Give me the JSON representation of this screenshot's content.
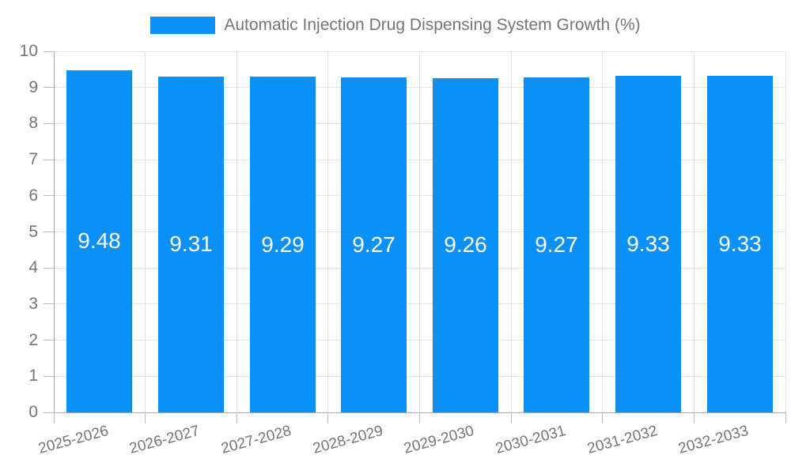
{
  "chart_data": {
    "type": "bar",
    "title": "Automatic Injection Drug Dispensing System Growth (%)",
    "categories": [
      "2025-2026",
      "2026-2027",
      "2027-2028",
      "2028-2029",
      "2029-2030",
      "2030-2031",
      "2031-2032",
      "2032-2033"
    ],
    "values": [
      9.48,
      9.31,
      9.29,
      9.27,
      9.26,
      9.27,
      9.33,
      9.33
    ],
    "value_labels": [
      "9.48",
      "9.31",
      "9.29",
      "9.27",
      "9.26",
      "9.27",
      "9.33",
      "9.33"
    ],
    "xlabel": "",
    "ylabel": "",
    "ylim": [
      0,
      10
    ],
    "ytick_step": 1,
    "ytick_labels": [
      "0",
      "1",
      "2",
      "3",
      "4",
      "5",
      "6",
      "7",
      "8",
      "9",
      "10"
    ],
    "grid": true,
    "legend_position": "top-center",
    "x_label_rotation_deg": -15,
    "colors": {
      "bar": "#0a90f6",
      "value_label": "#ffffff",
      "axis_text": "#757575",
      "gridline": "#e3e3e3",
      "axis_line": "#a9a9a9",
      "tick": "#bdbdbd",
      "background": "#ffffff"
    }
  }
}
